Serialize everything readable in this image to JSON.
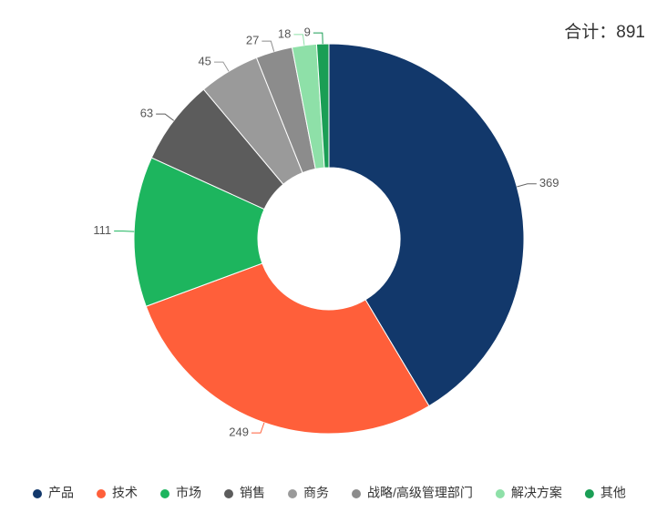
{
  "chart_data": {
    "type": "donut",
    "annotation": "合计：891",
    "categories": [
      "产品",
      "技术",
      "市场",
      "销售",
      "商务",
      "战略/高级管理部门",
      "解决方案",
      "其他"
    ],
    "values": [
      369,
      249,
      111,
      63,
      45,
      27,
      18,
      9
    ],
    "colors": [
      "#12386b",
      "#ff5f3a",
      "#1db55e",
      "#5c5c5c",
      "#9a9a9a",
      "#8c8c8c",
      "#8ee0a8",
      "#1a9e55"
    ],
    "legend": "bottom"
  }
}
